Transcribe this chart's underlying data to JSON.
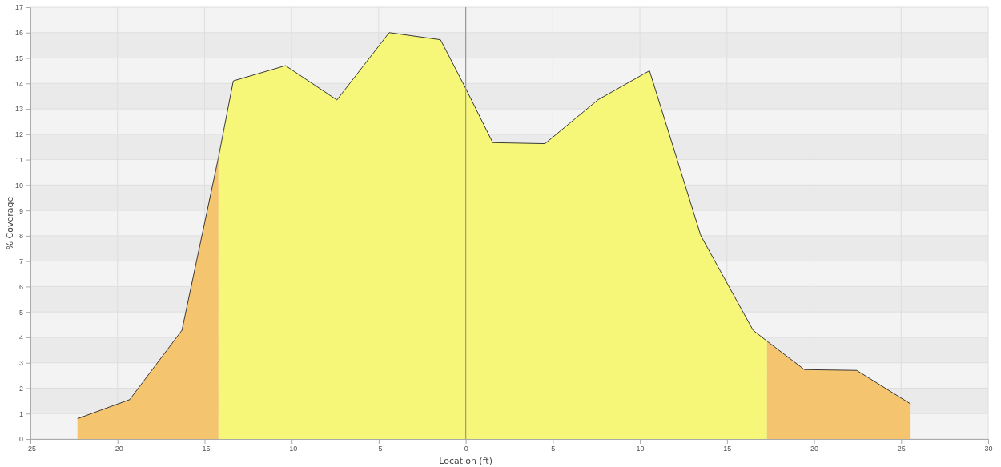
{
  "chart_data": {
    "type": "area",
    "xlabel": "Location (ft)",
    "ylabel": "% Coverage",
    "xlim": [
      -25,
      30
    ],
    "xticks": [
      -25,
      -20,
      -15,
      -10,
      -5,
      0,
      5,
      10,
      15,
      20,
      25,
      30
    ],
    "ylim": [
      0,
      17
    ],
    "yticks": [
      0,
      1,
      2,
      3,
      4,
      5,
      6,
      7,
      8,
      9,
      10,
      11,
      12,
      13,
      14,
      15,
      16,
      17
    ],
    "grid": true,
    "ref_lines": [
      {
        "axis": "x",
        "value": 0,
        "color": "#999999"
      }
    ],
    "series": [
      {
        "color": "#f5c46e",
        "x": [
          -22.3,
          -19.3,
          -16.3,
          -14.2
        ],
        "values": [
          0.8,
          1.55,
          4.28,
          11.1
        ]
      },
      {
        "color": "#f6f679",
        "x": [
          -14.2,
          -13.35,
          -10.35,
          -7.4,
          -4.4,
          -1.45,
          0,
          1.55,
          4.55,
          7.6,
          10.55,
          13.5,
          16.5,
          17.3
        ],
        "values": [
          11.1,
          14.1,
          14.7,
          13.35,
          16.0,
          15.72,
          13.8,
          11.67,
          11.63,
          13.36,
          14.5,
          8.0,
          4.28,
          3.85
        ]
      },
      {
        "color": "#f5c46e",
        "x": [
          17.3,
          19.45,
          22.45,
          25.5
        ],
        "values": [
          3.85,
          2.73,
          2.7,
          1.4
        ]
      }
    ]
  }
}
